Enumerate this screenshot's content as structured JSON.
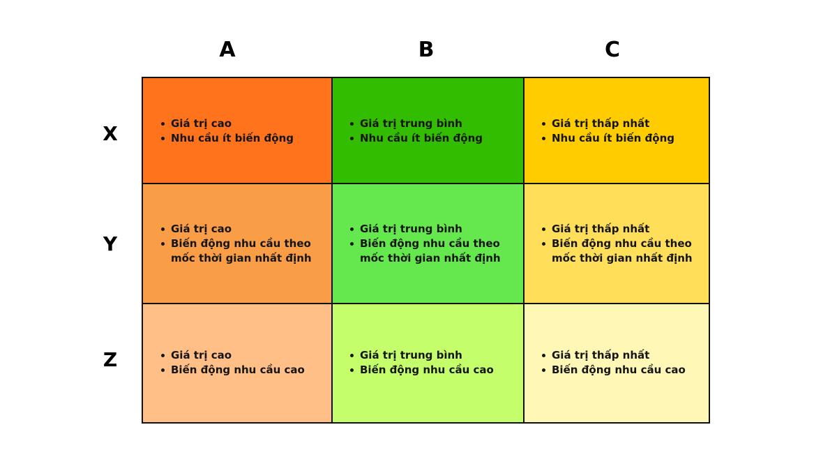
{
  "columns": [
    "A",
    "B",
    "C"
  ],
  "rows": [
    "X",
    "Y",
    "Z"
  ],
  "cells": [
    [
      {
        "color": "#FF731D",
        "lines": [
          "Giá trị cao",
          "Nhu cầu ít biến động"
        ]
      },
      {
        "color": "#33BD00",
        "lines": [
          "Giá trị trung bình",
          "Nhu cầu ít biến động"
        ]
      },
      {
        "color": "#FFCC00",
        "lines": [
          "Giá trị thấp nhất",
          "Nhu cầu ít biến động"
        ]
      }
    ],
    [
      {
        "color": "#F99D46",
        "lines": [
          "Giá trị cao",
          "Biến động nhu cầu theo mốc thời gian nhất định"
        ]
      },
      {
        "color": "#65E84D",
        "lines": [
          "Giá trị trung bình",
          "Biến động nhu cầu theo mốc thời gian nhất định"
        ]
      },
      {
        "color": "#FFDE59",
        "lines": [
          "Giá trị thấp nhất",
          "Biến động nhu cầu theo mốc thời gian nhất định"
        ]
      }
    ],
    [
      {
        "color": "#FFBF87",
        "lines": [
          "Giá trị cao",
          "Biến động nhu cầu cao"
        ]
      },
      {
        "color": "#C4FF6B",
        "lines": [
          "Giá trị trung bình",
          "Biến động nhu cầu cao"
        ]
      },
      {
        "color": "#FFF7B5",
        "lines": [
          "Giá trị thấp nhất",
          "Biến động nhu cầu cao"
        ]
      }
    ]
  ]
}
